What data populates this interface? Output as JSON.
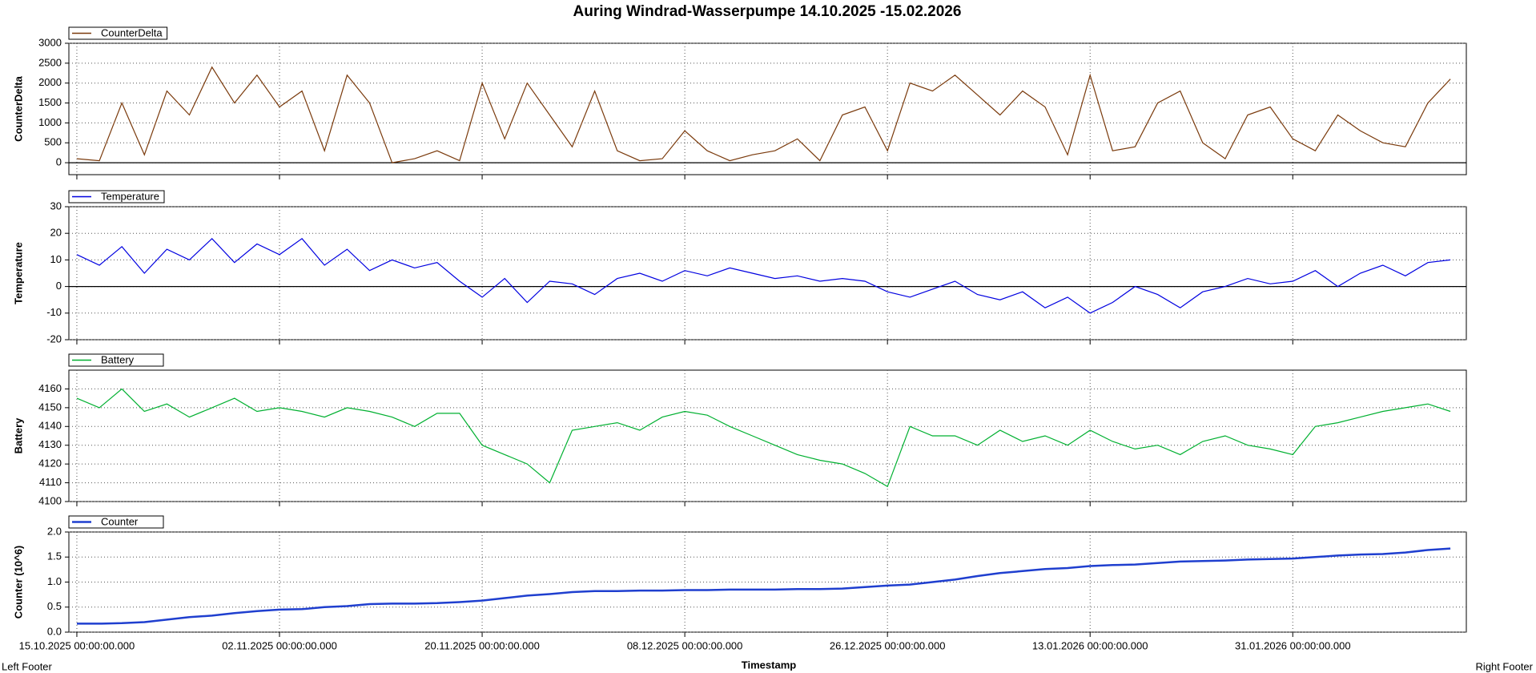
{
  "title": "Auring Windrad-Wasserpumpe 14.10.2025 -15.02.2026",
  "xlabel": "Timestamp",
  "footer_left": "Left Footer",
  "footer_right": "Right Footer",
  "x": [
    "2025-10-15",
    "2025-10-17",
    "2025-10-19",
    "2025-10-21",
    "2025-10-23",
    "2025-10-25",
    "2025-10-27",
    "2025-10-29",
    "2025-10-31",
    "2025-11-02",
    "2025-11-04",
    "2025-11-06",
    "2025-11-08",
    "2025-11-10",
    "2025-11-12",
    "2025-11-14",
    "2025-11-16",
    "2025-11-18",
    "2025-11-20",
    "2025-11-22",
    "2025-11-24",
    "2025-11-26",
    "2025-11-28",
    "2025-11-30",
    "2025-12-02",
    "2025-12-04",
    "2025-12-06",
    "2025-12-08",
    "2025-12-10",
    "2025-12-12",
    "2025-12-14",
    "2025-12-16",
    "2025-12-18",
    "2025-12-20",
    "2025-12-22",
    "2025-12-24",
    "2025-12-26",
    "2025-12-28",
    "2025-12-30",
    "2026-01-01",
    "2026-01-03",
    "2026-01-05",
    "2026-01-07",
    "2026-01-09",
    "2026-01-11",
    "2026-01-13",
    "2026-01-15",
    "2026-01-17",
    "2026-01-19",
    "2026-01-21",
    "2026-01-23",
    "2026-01-25",
    "2026-01-27",
    "2026-01-29",
    "2026-01-31",
    "2026-02-02",
    "2026-02-04",
    "2026-02-06",
    "2026-02-08",
    "2026-02-10",
    "2026-02-12",
    "2026-02-14"
  ],
  "xlim": [
    "2025-10-14T07:00:00",
    "2026-02-15T10:00:00"
  ],
  "xticks": [
    {
      "value": "2025-10-15",
      "label": "15.10.2025 00:00:00.000"
    },
    {
      "value": "2025-11-02",
      "label": "02.11.2025 00:00:00.000"
    },
    {
      "value": "2025-11-20",
      "label": "20.11.2025 00:00:00.000"
    },
    {
      "value": "2025-12-08",
      "label": "08.12.2025 00:00:00.000"
    },
    {
      "value": "2025-12-26",
      "label": "26.12.2025 00:00:00.000"
    },
    {
      "value": "2026-01-13",
      "label": "13.01.2026 00:00:00.000"
    },
    {
      "value": "2026-01-31",
      "label": "31.01.2026 00:00:00.000"
    }
  ],
  "grid": true,
  "chart_data": [
    {
      "type": "line",
      "ylabel": "CounterDelta",
      "ylim": [
        -300,
        3000
      ],
      "yticks": [
        0,
        500,
        1000,
        1500,
        2000,
        2500,
        3000
      ],
      "series": [
        {
          "name": "CounterDelta",
          "color": "#7a3a0c",
          "values": [
            100,
            50,
            1500,
            200,
            1800,
            1200,
            2400,
            1500,
            2200,
            1400,
            1800,
            300,
            2200,
            1500,
            0,
            100,
            300,
            50,
            2000,
            600,
            2000,
            1200,
            400,
            1800,
            300,
            50,
            100,
            800,
            300,
            50,
            200,
            300,
            600,
            50,
            1200,
            1400,
            300,
            2000,
            1800,
            2200,
            1700,
            1200,
            1800,
            1400,
            200,
            2200,
            300,
            400,
            1500,
            1800,
            500,
            100,
            1200,
            1400,
            600,
            300,
            1200,
            800,
            500,
            400,
            1500,
            2100
          ]
        }
      ]
    },
    {
      "type": "line",
      "ylabel": "Temperature",
      "ylim": [
        -20,
        30
      ],
      "yticks": [
        -20,
        -10,
        0,
        10,
        20,
        30
      ],
      "series": [
        {
          "name": "Temperature",
          "color": "#0000e0",
          "values": [
            12,
            8,
            15,
            5,
            14,
            10,
            18,
            9,
            16,
            12,
            18,
            8,
            14,
            6,
            10,
            7,
            9,
            2,
            -4,
            3,
            -6,
            2,
            1,
            -3,
            3,
            5,
            2,
            6,
            4,
            7,
            5,
            3,
            4,
            2,
            3,
            2,
            -2,
            -4,
            -1,
            2,
            -3,
            -5,
            -2,
            -8,
            -4,
            -10,
            -6,
            0,
            -3,
            -8,
            -2,
            0,
            3,
            1,
            2,
            6,
            0,
            5,
            8,
            4,
            9,
            10
          ]
        }
      ]
    },
    {
      "type": "line",
      "ylabel": "Battery",
      "ylim": [
        4100,
        4170
      ],
      "yticks": [
        4100,
        4110,
        4120,
        4130,
        4140,
        4150,
        4160
      ],
      "series": [
        {
          "name": "Battery",
          "color": "#00b030",
          "values": [
            4155,
            4150,
            4160,
            4148,
            4152,
            4145,
            4150,
            4155,
            4148,
            4150,
            4148,
            4145,
            4150,
            4148,
            4145,
            4140,
            4147,
            4147,
            4130,
            4125,
            4120,
            4110,
            4138,
            4140,
            4142,
            4138,
            4145,
            4148,
            4146,
            4140,
            4135,
            4130,
            4125,
            4122,
            4120,
            4115,
            4108,
            4140,
            4135,
            4135,
            4130,
            4138,
            4132,
            4135,
            4130,
            4138,
            4132,
            4128,
            4130,
            4125,
            4132,
            4135,
            4130,
            4128,
            4125,
            4140,
            4142,
            4145,
            4148,
            4150,
            4152,
            4148
          ]
        }
      ]
    },
    {
      "type": "line",
      "ylabel": "Counter (10^6)",
      "ylim": [
        0,
        2
      ],
      "yticks": [
        {
          "value": 0,
          "label": "0.0"
        },
        0.5,
        {
          "value": 1,
          "label": "1.0"
        },
        1.5,
        {
          "value": 2,
          "label": "2.0"
        }
      ],
      "series": [
        {
          "name": "Counter",
          "color": "#1f3fcf",
          "values": [
            0.17,
            0.17,
            0.18,
            0.2,
            0.25,
            0.3,
            0.33,
            0.38,
            0.42,
            0.45,
            0.46,
            0.5,
            0.52,
            0.56,
            0.57,
            0.57,
            0.58,
            0.6,
            0.63,
            0.68,
            0.73,
            0.76,
            0.8,
            0.82,
            0.82,
            0.83,
            0.83,
            0.84,
            0.84,
            0.85,
            0.85,
            0.85,
            0.86,
            0.86,
            0.87,
            0.9,
            0.93,
            0.95,
            1.0,
            1.05,
            1.12,
            1.18,
            1.22,
            1.26,
            1.28,
            1.32,
            1.34,
            1.35,
            1.38,
            1.41,
            1.42,
            1.43,
            1.45,
            1.46,
            1.47,
            1.5,
            1.53,
            1.55,
            1.56,
            1.59,
            1.64,
            1.67
          ]
        }
      ]
    }
  ]
}
